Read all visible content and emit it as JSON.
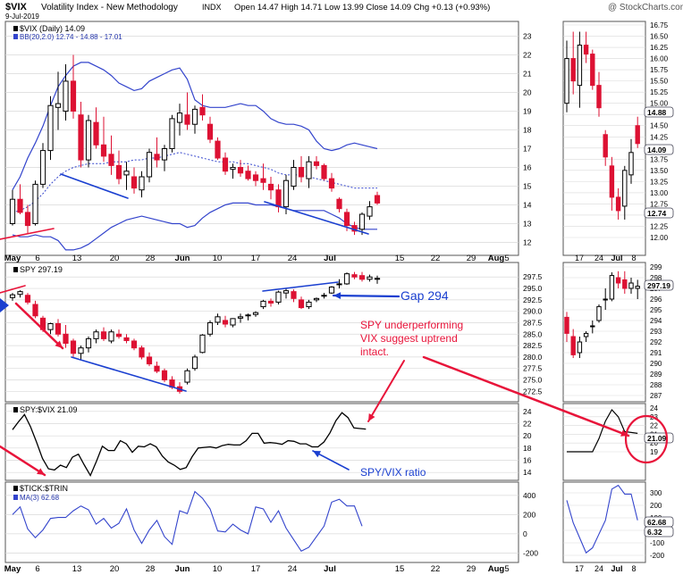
{
  "header": {
    "symbol": "$VIX",
    "name": "Volatility Index - New Methodology",
    "exchange": "INDX",
    "date": "9-Jul-2019",
    "quote": "Open 14.47  High 14.71  Low 13.99  Close 14.09  Chg +0.13 (+0.93%)",
    "watermark": "@ StockCharts.com"
  },
  "colors": {
    "up": "#000000",
    "down": "#dd1133",
    "band": "#3344cc",
    "annot_red": "#e8143a",
    "annot_blue": "#1a3fd0",
    "grid": "#d9d9d9"
  },
  "chart_data": [
    {
      "panel": "vix",
      "type": "candlestick",
      "legend": [
        "$VIX (Daily) 14.09",
        "BB(20,2.0) 12.74 - 14.88 - 17.01"
      ],
      "y_ticks": [
        "23",
        "22",
        "21",
        "20",
        "19",
        "18",
        "17",
        "16",
        "15",
        "14",
        "13",
        "12"
      ],
      "ylim": [
        11.5,
        23.5
      ],
      "candles": [
        [
          13.0,
          14.8,
          12.9,
          14.3
        ],
        [
          14.3,
          15.1,
          13.5,
          13.6
        ],
        [
          13.6,
          14.0,
          12.5,
          12.9
        ],
        [
          13.0,
          15.3,
          12.9,
          15.1
        ],
        [
          15.1,
          17.3,
          14.9,
          16.9
        ],
        [
          16.9,
          19.8,
          16.4,
          19.3
        ],
        [
          19.2,
          21.1,
          18.0,
          19.4
        ],
        [
          19.0,
          21.5,
          18.5,
          20.6
        ],
        [
          20.6,
          22.0,
          18.6,
          19.0
        ],
        [
          18.8,
          19.5,
          16.0,
          16.4
        ],
        [
          16.4,
          18.8,
          16.0,
          18.5
        ],
        [
          18.4,
          19.2,
          17.0,
          17.2
        ],
        [
          17.2,
          18.7,
          16.3,
          16.6
        ],
        [
          16.7,
          17.7,
          15.6,
          16.1
        ],
        [
          16.1,
          16.9,
          15.1,
          15.4
        ],
        [
          15.6,
          16.3,
          14.8,
          15.8
        ],
        [
          15.5,
          16.0,
          14.6,
          14.9
        ],
        [
          14.8,
          15.8,
          14.4,
          15.5
        ],
        [
          15.5,
          17.0,
          15.2,
          16.8
        ],
        [
          16.7,
          17.6,
          16.0,
          16.4
        ],
        [
          16.4,
          17.2,
          15.8,
          17.0
        ],
        [
          17.0,
          18.8,
          16.8,
          18.6
        ],
        [
          18.4,
          19.4,
          17.7,
          18.9
        ],
        [
          18.8,
          20.0,
          18.0,
          18.3
        ],
        [
          18.3,
          19.3,
          17.8,
          19.1
        ],
        [
          19.2,
          19.9,
          18.5,
          18.8
        ],
        [
          18.3,
          18.7,
          17.3,
          17.5
        ],
        [
          17.4,
          17.6,
          16.4,
          16.5
        ],
        [
          16.5,
          16.8,
          15.6,
          15.8
        ],
        [
          15.9,
          16.2,
          15.4,
          16.0
        ],
        [
          16.0,
          16.4,
          15.5,
          15.7
        ],
        [
          15.8,
          16.1,
          15.3,
          15.4
        ],
        [
          15.6,
          15.8,
          15.0,
          15.3
        ],
        [
          15.4,
          16.2,
          14.8,
          15.2
        ],
        [
          15.1,
          15.5,
          14.3,
          14.8
        ],
        [
          14.8,
          15.1,
          13.6,
          13.9
        ],
        [
          13.9,
          15.6,
          13.5,
          15.3
        ],
        [
          15.0,
          16.4,
          14.8,
          16.0
        ],
        [
          16.0,
          16.6,
          15.2,
          15.5
        ],
        [
          15.4,
          16.6,
          14.9,
          16.3
        ],
        [
          16.3,
          16.6,
          15.9,
          16.1
        ],
        [
          16.1,
          16.2,
          15.3,
          15.4
        ],
        [
          15.4,
          15.7,
          14.7,
          14.9
        ],
        [
          14.3,
          14.4,
          13.6,
          13.8
        ],
        [
          13.6,
          13.8,
          12.6,
          12.9
        ],
        [
          12.9,
          13.1,
          12.4,
          12.6
        ],
        [
          12.7,
          13.6,
          12.4,
          13.5
        ],
        [
          13.4,
          14.2,
          13.2,
          13.9
        ],
        [
          14.5,
          14.7,
          14.0,
          14.1
        ]
      ],
      "bb_upper": [
        14.8,
        15.5,
        16.5,
        17.3,
        18.2,
        19.3,
        20.3,
        20.9,
        21.4,
        21.6,
        21.6,
        21.4,
        21.2,
        20.9,
        20.5,
        20.3,
        20.1,
        20.2,
        20.6,
        20.8,
        21.0,
        21.2,
        21.3,
        20.7,
        19.6,
        19.3,
        19.2,
        19.2,
        19.2,
        19.3,
        19.4,
        19.3,
        19.3,
        19.0,
        18.6,
        18.4,
        18.3,
        18.3,
        18.2,
        18.0,
        17.4,
        17.0,
        16.9,
        17.0,
        17.2,
        17.3,
        17.2,
        17.1,
        17.0
      ],
      "bb_middle": [
        13.6,
        13.7,
        13.9,
        14.2,
        14.6,
        15.1,
        15.5,
        15.8,
        16.0,
        16.1,
        16.2,
        16.2,
        16.2,
        16.3,
        16.3,
        16.3,
        16.4,
        16.4,
        16.5,
        16.5,
        16.6,
        16.7,
        16.8,
        16.7,
        16.6,
        16.5,
        16.4,
        16.3,
        16.3,
        16.3,
        16.2,
        16.2,
        16.1,
        16.0,
        15.9,
        15.7,
        15.6,
        15.6,
        15.6,
        15.5,
        15.4,
        15.3,
        15.2,
        15.1,
        15.0,
        14.9,
        14.9,
        14.9,
        14.9
      ],
      "bb_lower": [
        12.4,
        12.3,
        12.3,
        12.4,
        12.3,
        12.3,
        12.1,
        11.6,
        11.6,
        11.7,
        11.9,
        12.2,
        12.5,
        12.8,
        13.0,
        13.2,
        13.3,
        13.4,
        13.3,
        13.2,
        13.1,
        13.0,
        13.0,
        12.8,
        12.9,
        13.3,
        13.6,
        13.8,
        14.0,
        14.1,
        14.1,
        14.1,
        14.0,
        14.0,
        14.0,
        13.9,
        13.8,
        13.7,
        13.7,
        13.7,
        13.7,
        13.7,
        13.5,
        13.3,
        13.0,
        12.8,
        12.7,
        12.7,
        12.7
      ]
    },
    {
      "panel": "spy",
      "type": "candlestick",
      "legend": [
        "SPY 297.19"
      ],
      "y_ticks": [
        "297.5",
        "295.0",
        "292.5",
        "290.0",
        "287.5",
        "285.0",
        "282.5",
        "280.0",
        "277.5",
        "275.0",
        "272.5"
      ],
      "ylim": [
        271,
        299.5
      ],
      "candles": [
        [
          293.0,
          294.0,
          292.3,
          293.6
        ],
        [
          293.7,
          294.6,
          293.0,
          294.3
        ],
        [
          293.5,
          294.0,
          291.5,
          292.0
        ],
        [
          291.5,
          292.3,
          288.5,
          289.0
        ],
        [
          288.5,
          289.0,
          285.5,
          286.0
        ],
        [
          286.0,
          287.5,
          285.0,
          287.3
        ],
        [
          287.3,
          288.3,
          284.5,
          285.0
        ],
        [
          285.0,
          287.0,
          282.0,
          283.0
        ],
        [
          283.5,
          284.0,
          280.0,
          280.8
        ],
        [
          280.8,
          282.5,
          279.5,
          282.0
        ],
        [
          282.0,
          284.5,
          281.0,
          284.0
        ],
        [
          284.0,
          286.0,
          283.0,
          285.5
        ],
        [
          285.5,
          286.5,
          283.5,
          284.0
        ],
        [
          283.5,
          286.0,
          283.0,
          285.5
        ],
        [
          285.0,
          286.0,
          284.0,
          284.5
        ],
        [
          284.2,
          285.0,
          283.0,
          283.6
        ],
        [
          283.5,
          284.0,
          281.5,
          282.0
        ],
        [
          282.0,
          282.5,
          279.5,
          280.0
        ],
        [
          280.0,
          281.0,
          278.0,
          278.5
        ],
        [
          278.0,
          279.0,
          276.5,
          276.9
        ],
        [
          277.0,
          277.5,
          274.5,
          275.0
        ],
        [
          275.0,
          275.8,
          273.0,
          273.4
        ],
        [
          273.5,
          274.5,
          272.0,
          272.5
        ],
        [
          274.5,
          277.5,
          274.0,
          277.0
        ],
        [
          277.5,
          280.5,
          277.0,
          280.0
        ],
        [
          281.0,
          285.0,
          280.8,
          284.8
        ],
        [
          285.0,
          288.0,
          284.5,
          287.5
        ],
        [
          287.6,
          289.5,
          287.0,
          288.8
        ],
        [
          288.0,
          289.0,
          286.5,
          287.2
        ],
        [
          287.0,
          288.5,
          286.5,
          288.4
        ],
        [
          288.5,
          289.5,
          287.5,
          288.8
        ],
        [
          289.0,
          289.5,
          288.0,
          289.2
        ],
        [
          289.3,
          290.0,
          288.8,
          289.7
        ],
        [
          291.0,
          292.5,
          290.5,
          292.2
        ],
        [
          292.2,
          292.8,
          291.0,
          291.8
        ],
        [
          292.0,
          294.5,
          291.5,
          294.2
        ],
        [
          294.0,
          295.0,
          292.8,
          294.5
        ],
        [
          294.3,
          294.8,
          292.0,
          292.8
        ],
        [
          292.5,
          293.2,
          290.5,
          290.8
        ],
        [
          291.0,
          292.5,
          290.5,
          292.0
        ],
        [
          292.5,
          293.0,
          292.0,
          292.8
        ],
        [
          293.5,
          294.0,
          292.8,
          293.5
        ],
        [
          294.0,
          295.5,
          293.8,
          295.3
        ],
        [
          296.0,
          297.0,
          295.0,
          296.0
        ],
        [
          296.0,
          298.5,
          295.8,
          298.2
        ],
        [
          298.0,
          298.6,
          297.0,
          297.5
        ],
        [
          297.8,
          298.6,
          296.5,
          297.0
        ],
        [
          297.0,
          298.0,
          296.5,
          297.5
        ],
        [
          297.0,
          297.8,
          296.0,
          297.2
        ]
      ]
    },
    {
      "panel": "ratio",
      "type": "line",
      "legend": [
        "SPY:$VIX 21.09"
      ],
      "y_ticks": [
        "24",
        "22",
        "20",
        "18",
        "16",
        "14"
      ],
      "ylim": [
        13,
        25
      ],
      "values": [
        21.0,
        22.3,
        23.5,
        21.5,
        19.0,
        16.3,
        14.6,
        14.4,
        15.2,
        14.8,
        16.5,
        17.0,
        15.2,
        13.5,
        15.8,
        18.3,
        17.6,
        17.6,
        19.2,
        18.7,
        17.3,
        18.3,
        18.2,
        18.7,
        18.2,
        16.7,
        15.7,
        15.2,
        14.5,
        14.8,
        16.6,
        18.0,
        18.1,
        18.2,
        18.0,
        18.4,
        18.6,
        18.5,
        18.5,
        19.2,
        20.4,
        20.4,
        18.8,
        18.9,
        18.8,
        18.6,
        19.2,
        19.1,
        18.7,
        18.7,
        18.2,
        18.2,
        19.0,
        20.5,
        22.5,
        23.8,
        23.0,
        21.3,
        21.2,
        21.1
      ]
    },
    {
      "panel": "tick_trin",
      "type": "line",
      "legend": [
        "$TICK:$TRIN",
        "MA(3) 62.68"
      ],
      "y_ticks": [
        "400",
        "200",
        "0",
        "-200"
      ],
      "ylim": [
        -280,
        520
      ],
      "values": [
        200,
        280,
        50,
        -40,
        40,
        160,
        170,
        170,
        240,
        290,
        250,
        100,
        160,
        60,
        110,
        260,
        40,
        -100,
        40,
        140,
        -30,
        -110,
        240,
        210,
        440,
        370,
        260,
        30,
        20,
        100,
        40,
        0,
        280,
        260,
        120,
        240,
        60,
        -60,
        -180,
        -140,
        -30,
        80,
        330,
        360,
        290,
        290,
        80
      ]
    }
  ],
  "x_axis": {
    "labels": [
      "May",
      "6",
      "13",
      "20",
      "28",
      "Jun",
      "10",
      "17",
      "24",
      "Jul",
      "15",
      "22",
      "29",
      "Aug",
      "5"
    ]
  },
  "mini": {
    "vix_ticks": [
      "16.75",
      "16.50",
      "16.25",
      "16.00",
      "15.75",
      "15.50",
      "15.25",
      "15.00",
      "14.75",
      "14.50",
      "14.25",
      "14.00",
      "13.75",
      "13.50",
      "13.25",
      "13.00",
      "12.75",
      "12.50",
      "12.25",
      "12.00"
    ],
    "vix_tags": [
      "14.88",
      "14.09",
      "12.74"
    ],
    "spy_ticks": [
      "299",
      "298",
      "297",
      "296",
      "295",
      "294",
      "293",
      "292",
      "291",
      "290",
      "289",
      "288",
      "287"
    ],
    "spy_tag": "297.19",
    "ratio_ticks": [
      "24",
      "23",
      "22",
      "21",
      "20",
      "19"
    ],
    "ratio_tag": "21.09",
    "tick_ticks": [
      "300",
      "200",
      "100",
      "0",
      "-100",
      "-200"
    ],
    "tick_tags": [
      "62.68",
      "6.32"
    ],
    "x_labels": [
      "17",
      "24",
      "Jul",
      "8"
    ]
  },
  "annotations": {
    "gap": "Gap 294",
    "spy_note": [
      "SPY underperforming",
      "VIX suggest uptrend",
      "intact."
    ],
    "ratio_note": "SPY/VIX ratio"
  }
}
